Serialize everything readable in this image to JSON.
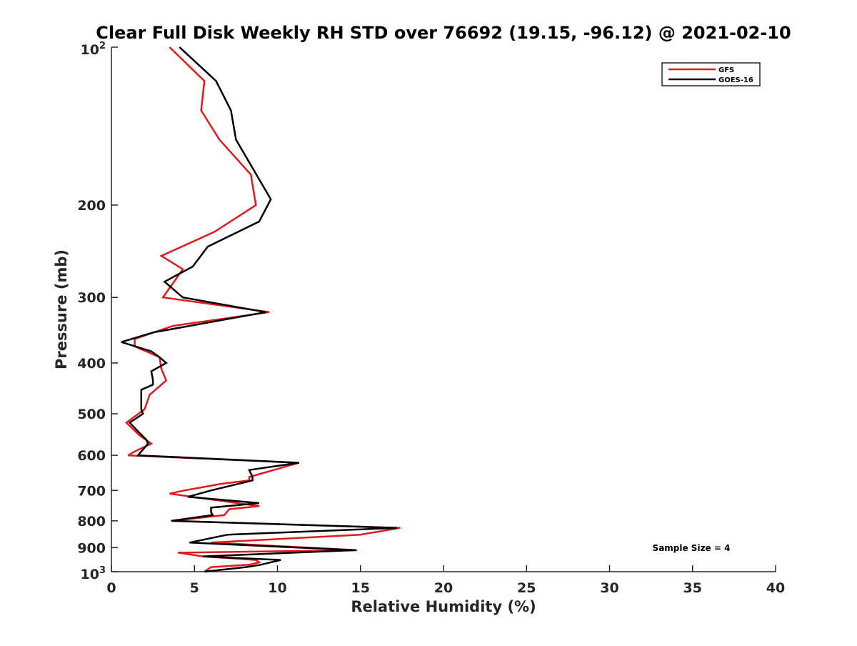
{
  "chart_data": {
    "type": "line",
    "title": "Clear Full Disk Weekly RH STD over 76692 (19.15, -96.12) @ 2021-02-10",
    "xlabel": "Relative Humidity (%)",
    "ylabel": "Pressure (mb)",
    "xlim": [
      0,
      40
    ],
    "ylim": [
      100,
      1000
    ],
    "yscale": "log",
    "y_reversed": true,
    "grid": false,
    "x_ticks": [
      0,
      5,
      10,
      15,
      20,
      25,
      30,
      35,
      40
    ],
    "x_tick_labels": [
      "0",
      "5",
      "10",
      "15",
      "20",
      "25",
      "30",
      "35",
      "40"
    ],
    "y_ticks": [
      100,
      200,
      300,
      400,
      500,
      600,
      700,
      800,
      900,
      1000
    ],
    "y_tick_labels": [
      "",
      "200",
      "300",
      "400",
      "500",
      "600",
      "700",
      "800",
      "900",
      ""
    ],
    "y_end_labels": {
      "top_base": "10",
      "top_exp": "2",
      "bottom_base": "10",
      "bottom_exp": "3"
    },
    "legend": {
      "location": "top-right",
      "entries": [
        "GFS",
        "GOES-16"
      ]
    },
    "annotation": "Sample Size = 4",
    "series": [
      {
        "name": "GFS",
        "color": "#e31a1c",
        "points": [
          [
            3.5,
            100
          ],
          [
            5.6,
            116
          ],
          [
            5.4,
            132
          ],
          [
            6.5,
            150
          ],
          [
            8.4,
            175
          ],
          [
            8.7,
            200
          ],
          [
            6.2,
            225
          ],
          [
            3.0,
            250
          ],
          [
            4.3,
            265
          ],
          [
            3.6,
            285
          ],
          [
            3.1,
            300
          ],
          [
            9.5,
            320
          ],
          [
            3.7,
            340
          ],
          [
            1.4,
            360
          ],
          [
            1.4,
            372
          ],
          [
            2.9,
            390
          ],
          [
            3.0,
            410
          ],
          [
            3.3,
            432
          ],
          [
            2.3,
            460
          ],
          [
            2.0,
            490
          ],
          [
            0.9,
            520
          ],
          [
            1.7,
            550
          ],
          [
            2.4,
            570
          ],
          [
            1.4,
            590
          ],
          [
            1.0,
            600
          ],
          [
            11.3,
            620
          ],
          [
            8.3,
            660
          ],
          [
            8.3,
            670
          ],
          [
            6.6,
            680
          ],
          [
            4.4,
            700
          ],
          [
            3.5,
            710
          ],
          [
            8.9,
            750
          ],
          [
            7.1,
            760
          ],
          [
            6.8,
            780
          ],
          [
            3.7,
            800
          ],
          [
            17.4,
            825
          ],
          [
            15.0,
            850
          ],
          [
            6.0,
            880
          ],
          [
            14.8,
            910
          ],
          [
            4.0,
            920
          ],
          [
            5.5,
            935
          ],
          [
            8.7,
            950
          ],
          [
            8.9,
            960
          ],
          [
            8.3,
            970
          ],
          [
            6.0,
            980
          ],
          [
            5.6,
            1000
          ]
        ]
      },
      {
        "name": "GOES-16",
        "color": "#000000",
        "points": [
          [
            4.1,
            100
          ],
          [
            6.3,
            116
          ],
          [
            7.2,
            132
          ],
          [
            7.5,
            150
          ],
          [
            9.6,
            195
          ],
          [
            8.9,
            215
          ],
          [
            5.8,
            240
          ],
          [
            4.9,
            262
          ],
          [
            3.2,
            280
          ],
          [
            4.3,
            300
          ],
          [
            9.3,
            320
          ],
          [
            2.5,
            350
          ],
          [
            0.6,
            365
          ],
          [
            2.4,
            380
          ],
          [
            2.9,
            390
          ],
          [
            3.3,
            400
          ],
          [
            2.4,
            415
          ],
          [
            2.5,
            430
          ],
          [
            2.5,
            440
          ],
          [
            1.8,
            450
          ],
          [
            1.8,
            490
          ],
          [
            1.9,
            500
          ],
          [
            1.1,
            520
          ],
          [
            1.6,
            540
          ],
          [
            2.1,
            560
          ],
          [
            2.2,
            570
          ],
          [
            2.0,
            580
          ],
          [
            1.6,
            600
          ],
          [
            11.3,
            620
          ],
          [
            8.3,
            640
          ],
          [
            8.5,
            660
          ],
          [
            8.5,
            670
          ],
          [
            6.0,
            700
          ],
          [
            4.6,
            720
          ],
          [
            8.9,
            740
          ],
          [
            6.0,
            755
          ],
          [
            6.0,
            770
          ],
          [
            6.1,
            780
          ],
          [
            3.6,
            800
          ],
          [
            17.2,
            825
          ],
          [
            7.0,
            850
          ],
          [
            4.7,
            880
          ],
          [
            14.7,
            910
          ],
          [
            5.5,
            935
          ],
          [
            10.2,
            950
          ],
          [
            9.0,
            970
          ],
          [
            8.1,
            980
          ],
          [
            5.6,
            1000
          ]
        ]
      }
    ]
  }
}
